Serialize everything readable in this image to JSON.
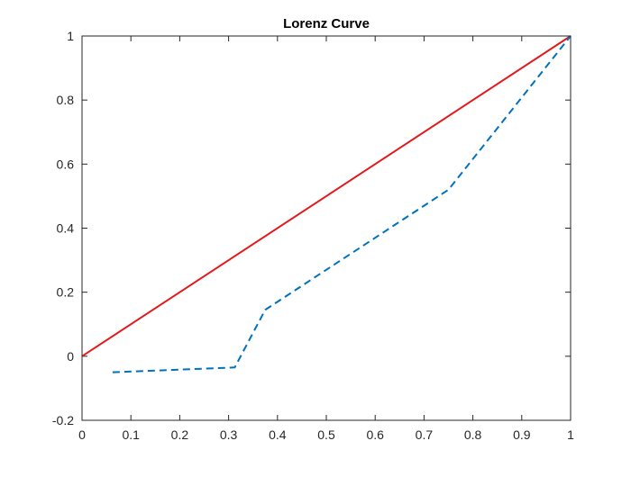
{
  "chart_data": {
    "type": "line",
    "title": "Lorenz Curve",
    "xlabel": "",
    "ylabel": "",
    "xlim": [
      0,
      1
    ],
    "ylim": [
      -0.2,
      1
    ],
    "grid": false,
    "legend": "none",
    "x_ticks": [
      0,
      0.1,
      0.2,
      0.3,
      0.4,
      0.5,
      0.6,
      0.7,
      0.8,
      0.9,
      1
    ],
    "x_tick_labels": [
      "0",
      "0.1",
      "0.2",
      "0.3",
      "0.4",
      "0.5",
      "0.6",
      "0.7",
      "0.8",
      "0.9",
      "1"
    ],
    "y_ticks": [
      -0.2,
      0,
      0.2,
      0.4,
      0.6,
      0.8,
      1
    ],
    "y_tick_labels": [
      "-0.2",
      "0",
      "0.2",
      "0.4",
      "0.6",
      "0.8",
      "1"
    ],
    "series": [
      {
        "style": "solid",
        "color": "#e31a1c",
        "x": [
          0,
          1
        ],
        "y": [
          0,
          1
        ]
      },
      {
        "style": "dashed",
        "color": "#0072bd",
        "x": [
          0.0625,
          0.3125,
          0.375,
          0.75,
          1
        ],
        "y": [
          -0.05,
          -0.035,
          0.145,
          0.52,
          1
        ]
      }
    ]
  }
}
